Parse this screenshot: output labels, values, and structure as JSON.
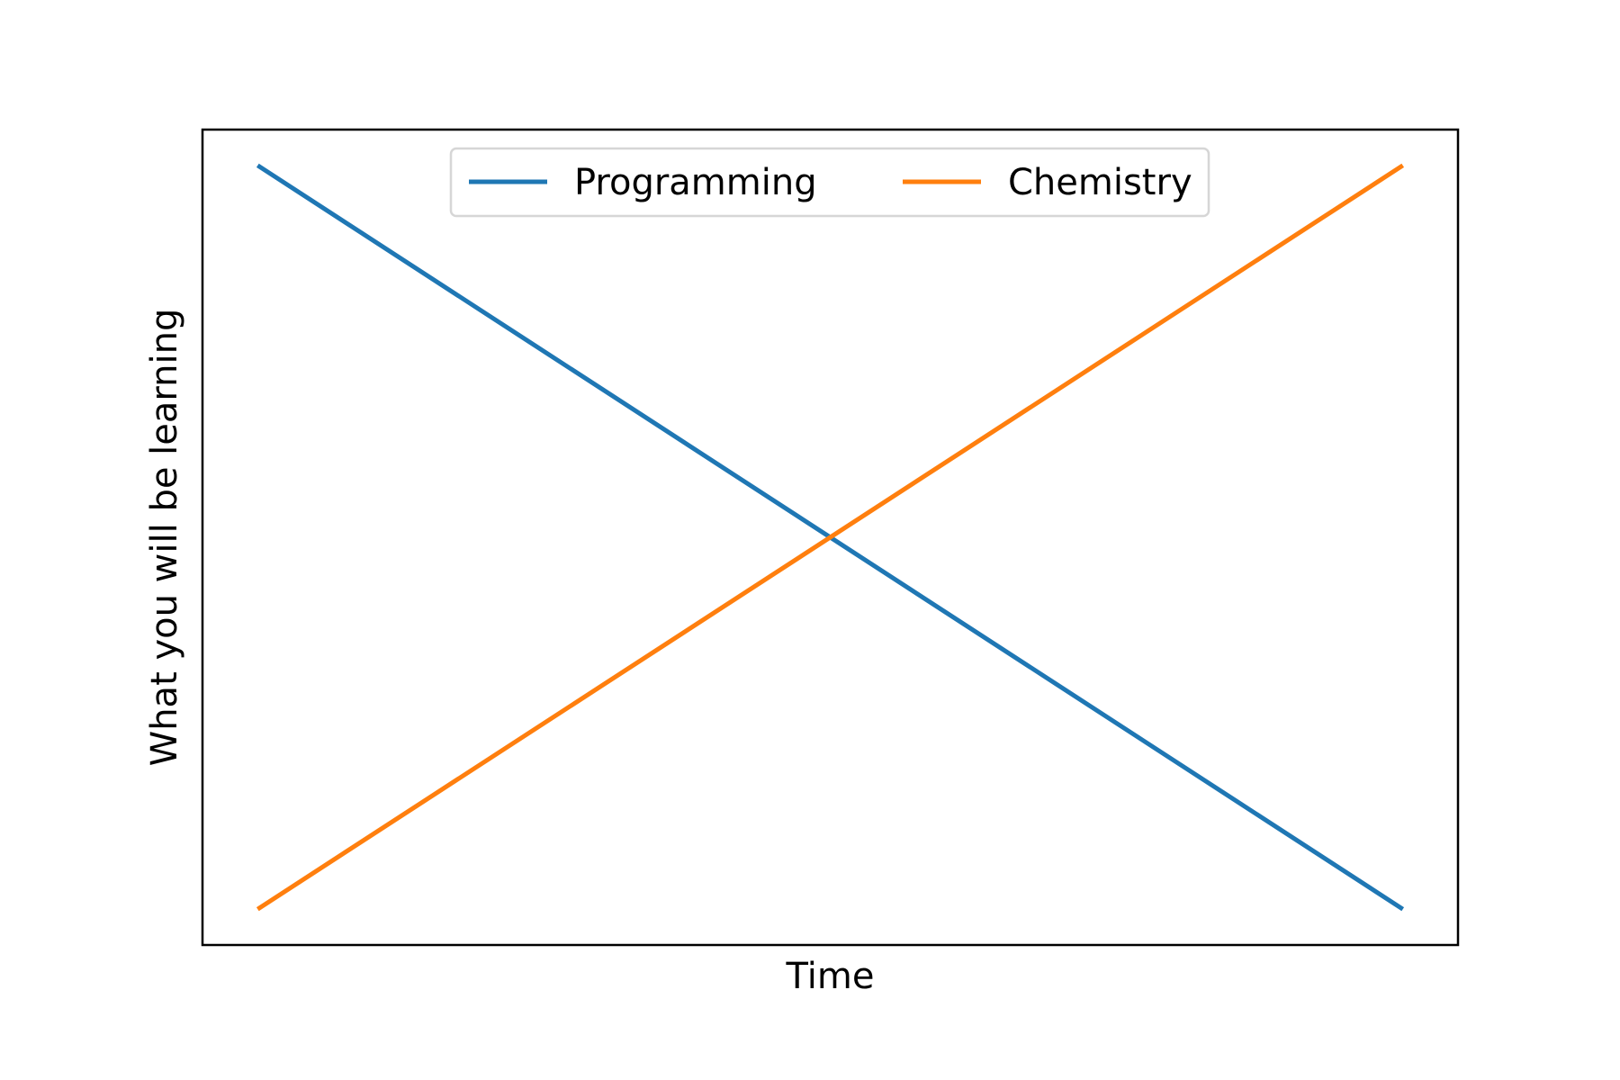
{
  "chart_data": {
    "type": "line",
    "title": "",
    "xlabel": "Time",
    "ylabel": "What you will be learning",
    "x": [
      0,
      1
    ],
    "xlim": [
      -0.05,
      1.05
    ],
    "ylim": [
      -0.05,
      1.05
    ],
    "grid": false,
    "ticks": false,
    "legend_placement": "upper center",
    "legend_columns": 2,
    "series": [
      {
        "name": "Programming",
        "values": [
          1,
          0
        ],
        "color": "#1f77b4"
      },
      {
        "name": "Chemistry",
        "values": [
          0,
          1
        ],
        "color": "#ff7f0e"
      }
    ]
  }
}
